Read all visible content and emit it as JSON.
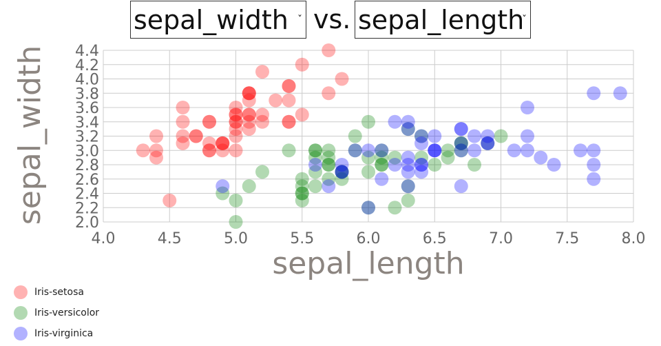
{
  "controls": {
    "y_select": {
      "value": "sepal_width",
      "options": [
        "sepal_width"
      ]
    },
    "vs_label": "vs.",
    "x_select": {
      "value": "sepal_length",
      "options": [
        "sepal_length"
      ]
    }
  },
  "chart_data": {
    "type": "scatter",
    "title": "",
    "xlabel": "sepal_length",
    "ylabel": "sepal_width",
    "xlim": [
      4.0,
      8.0
    ],
    "ylim": [
      2.0,
      4.4
    ],
    "xticks": [
      "4.0",
      "4.5",
      "5.0",
      "5.5",
      "6.0",
      "6.5",
      "7.0",
      "7.5",
      "8.0"
    ],
    "yticks": [
      "2.0",
      "2.2",
      "2.4",
      "2.6",
      "2.8",
      "3.0",
      "3.2",
      "3.4",
      "3.6",
      "3.8",
      "4.0",
      "4.2",
      "4.4"
    ],
    "grid": true,
    "legend_position": "bottom-left",
    "series": [
      {
        "name": "Iris-setosa",
        "color": "#ff0000",
        "x": [
          5.1,
          4.9,
          4.7,
          4.6,
          5.0,
          5.4,
          4.6,
          5.0,
          4.4,
          4.9,
          5.4,
          4.8,
          4.8,
          4.3,
          5.8,
          5.7,
          5.4,
          5.1,
          5.7,
          5.1,
          5.4,
          5.1,
          4.6,
          5.1,
          4.8,
          5.0,
          5.0,
          5.2,
          5.2,
          4.7,
          4.8,
          5.4,
          5.2,
          5.5,
          4.9,
          5.0,
          5.5,
          4.9,
          4.4,
          5.1,
          5.0,
          4.5,
          4.4,
          5.0,
          5.1,
          4.8,
          5.1,
          4.6,
          5.3,
          5.0
        ],
        "y": [
          3.5,
          3.0,
          3.2,
          3.1,
          3.6,
          3.9,
          3.4,
          3.4,
          2.9,
          3.1,
          3.7,
          3.4,
          3.0,
          3.0,
          4.0,
          4.4,
          3.9,
          3.5,
          3.8,
          3.8,
          3.4,
          3.7,
          3.6,
          3.3,
          3.4,
          3.0,
          3.4,
          3.5,
          3.4,
          3.2,
          3.1,
          3.4,
          4.1,
          4.2,
          3.1,
          3.2,
          3.5,
          3.1,
          3.0,
          3.4,
          3.5,
          2.3,
          3.2,
          3.5,
          3.8,
          3.0,
          3.8,
          3.2,
          3.7,
          3.3
        ]
      },
      {
        "name": "Iris-versicolor",
        "color": "#008000",
        "x": [
          7.0,
          6.4,
          6.9,
          5.5,
          6.5,
          5.7,
          6.3,
          4.9,
          6.6,
          5.2,
          5.0,
          5.9,
          6.0,
          6.1,
          5.6,
          6.7,
          5.6,
          5.8,
          6.2,
          5.6,
          5.9,
          6.1,
          6.3,
          6.1,
          6.4,
          6.6,
          6.8,
          6.7,
          6.0,
          5.7,
          5.5,
          5.5,
          5.8,
          6.0,
          5.4,
          6.0,
          6.7,
          6.3,
          5.6,
          5.5,
          5.5,
          6.1,
          5.8,
          5.0,
          5.6,
          5.7,
          5.7,
          6.2,
          5.1,
          5.7
        ],
        "y": [
          3.2,
          3.2,
          3.1,
          2.3,
          2.8,
          2.8,
          3.3,
          2.4,
          2.9,
          2.7,
          2.0,
          3.0,
          2.2,
          2.9,
          2.9,
          3.1,
          3.0,
          2.7,
          2.2,
          2.5,
          3.2,
          2.8,
          2.5,
          2.8,
          2.9,
          3.0,
          2.8,
          3.0,
          2.9,
          2.6,
          2.4,
          2.4,
          2.7,
          2.7,
          3.0,
          3.4,
          3.1,
          2.3,
          3.0,
          2.5,
          2.6,
          3.0,
          2.6,
          2.3,
          2.7,
          3.0,
          2.9,
          2.9,
          2.5,
          2.8
        ]
      },
      {
        "name": "Iris-virginica",
        "color": "#0000ff",
        "x": [
          6.3,
          5.8,
          7.1,
          6.3,
          6.5,
          7.6,
          4.9,
          7.3,
          6.7,
          7.2,
          6.5,
          6.4,
          6.8,
          5.7,
          5.8,
          6.4,
          6.5,
          7.7,
          7.7,
          6.0,
          6.9,
          5.6,
          7.7,
          6.3,
          6.7,
          7.2,
          6.2,
          6.1,
          6.4,
          7.2,
          7.4,
          7.9,
          6.4,
          6.3,
          6.1,
          7.7,
          6.3,
          6.4,
          6.0,
          6.9,
          6.7,
          6.9,
          5.8,
          6.8,
          6.7,
          6.7,
          6.3,
          6.5,
          6.2,
          5.9
        ],
        "y": [
          3.3,
          2.7,
          3.0,
          2.9,
          3.0,
          3.0,
          2.5,
          2.9,
          2.5,
          3.6,
          3.2,
          2.7,
          3.0,
          2.5,
          2.8,
          3.2,
          3.0,
          3.8,
          2.6,
          2.2,
          3.2,
          2.8,
          2.8,
          2.7,
          3.3,
          3.2,
          2.8,
          3.0,
          2.8,
          3.0,
          2.8,
          3.8,
          2.8,
          2.8,
          2.6,
          3.0,
          3.4,
          3.1,
          3.0,
          3.1,
          3.1,
          3.1,
          2.7,
          3.2,
          3.3,
          3.0,
          2.5,
          3.0,
          3.4,
          3.0
        ]
      }
    ]
  }
}
